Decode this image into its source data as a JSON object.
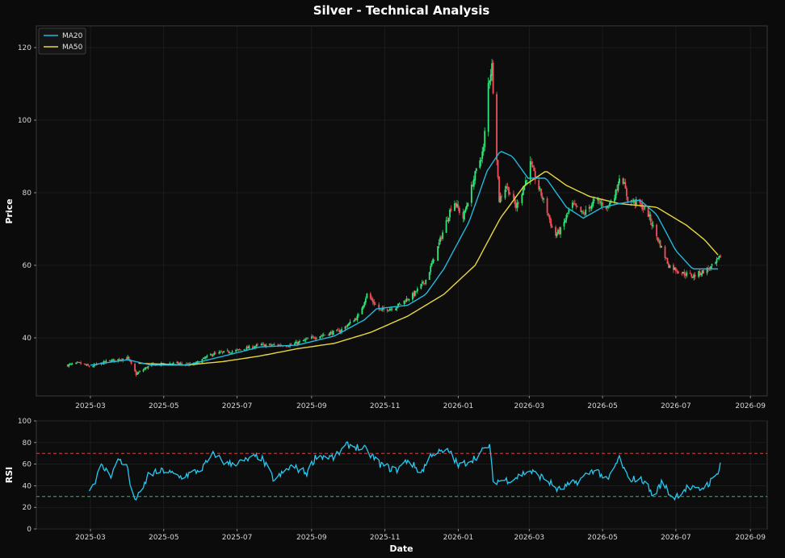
{
  "title": "Silver - Technical Analysis",
  "colors": {
    "background": "#0b0b0b",
    "up": "#2ee87a",
    "down": "#f0505a",
    "ma20": "#22b8e0",
    "ma50": "#e8d840",
    "rsi": "#28c8f0",
    "overbought_line": "#d84040",
    "oversold_line": "#20c070"
  },
  "chart_data": [
    {
      "type": "candlestick",
      "ylabel": "Price",
      "ylim": [
        24,
        126
      ],
      "yticks": [
        40,
        60,
        80,
        100,
        120
      ],
      "x_ticks": [
        "2025-03",
        "2025-05",
        "2025-07",
        "2025-09",
        "2025-11",
        "2026-01",
        "2026-03",
        "2026-05",
        "2026-07",
        "2026-09"
      ],
      "xlim": [
        "2025-01-15",
        "2026-09-15"
      ],
      "grid": true,
      "legend": {
        "position": "top-left",
        "entries": [
          "MA20",
          "MA50"
        ]
      },
      "price_anchors": [
        [
          "2025-02-10",
          32.5
        ],
        [
          "2025-02-20",
          33
        ],
        [
          "2025-03-01",
          32
        ],
        [
          "2025-03-15",
          33.5
        ],
        [
          "2025-04-01",
          34.5
        ],
        [
          "2025-04-08",
          30
        ],
        [
          "2025-04-20",
          32.5
        ],
        [
          "2025-05-10",
          33
        ],
        [
          "2025-05-25",
          32.5
        ],
        [
          "2025-06-10",
          35.5
        ],
        [
          "2025-07-01",
          36.5
        ],
        [
          "2025-07-20",
          38
        ],
        [
          "2025-08-15",
          38
        ],
        [
          "2025-09-01",
          40
        ],
        [
          "2025-09-25",
          42
        ],
        [
          "2025-10-10",
          46
        ],
        [
          "2025-10-17",
          52
        ],
        [
          "2025-10-28",
          47.5
        ],
        [
          "2025-11-10",
          48.5
        ],
        [
          "2025-11-25",
          52
        ],
        [
          "2025-12-05",
          56
        ],
        [
          "2025-12-12",
          62
        ],
        [
          "2025-12-20",
          70
        ],
        [
          "2025-12-28",
          78
        ],
        [
          "2026-01-05",
          73
        ],
        [
          "2026-01-15",
          85
        ],
        [
          "2026-01-22",
          92
        ],
        [
          "2026-01-26",
          110
        ],
        [
          "2026-01-29",
          115
        ],
        [
          "2026-02-01",
          96
        ],
        [
          "2026-02-04",
          78
        ],
        [
          "2026-02-10",
          82
        ],
        [
          "2026-02-18",
          76
        ],
        [
          "2026-02-25",
          82
        ],
        [
          "2026-03-02",
          88
        ],
        [
          "2026-03-08",
          82
        ],
        [
          "2026-03-15",
          76
        ],
        [
          "2026-03-22",
          68
        ],
        [
          "2026-03-28",
          70
        ],
        [
          "2026-04-05",
          77
        ],
        [
          "2026-04-15",
          74
        ],
        [
          "2026-04-25",
          78
        ],
        [
          "2026-05-05",
          76
        ],
        [
          "2026-05-12",
          80
        ],
        [
          "2026-05-16",
          86
        ],
        [
          "2026-05-22",
          78
        ],
        [
          "2026-06-01",
          77
        ],
        [
          "2026-06-08",
          74
        ],
        [
          "2026-06-15",
          68
        ],
        [
          "2026-06-25",
          60
        ],
        [
          "2026-07-05",
          58
        ],
        [
          "2026-07-15",
          57
        ],
        [
          "2026-07-25",
          58.5
        ],
        [
          "2026-08-02",
          60
        ],
        [
          "2026-08-08",
          63
        ]
      ],
      "ma20_anchors": [
        [
          "2025-03-01",
          32.5
        ],
        [
          "2025-04-01",
          34
        ],
        [
          "2025-04-20",
          32.5
        ],
        [
          "2025-05-20",
          32.5
        ],
        [
          "2025-06-20",
          35
        ],
        [
          "2025-07-20",
          37.5
        ],
        [
          "2025-08-20",
          38
        ],
        [
          "2025-09-20",
          40.5
        ],
        [
          "2025-10-15",
          45
        ],
        [
          "2025-10-25",
          48
        ],
        [
          "2025-11-20",
          49
        ],
        [
          "2025-12-05",
          52
        ],
        [
          "2025-12-20",
          59
        ],
        [
          "2026-01-10",
          72
        ],
        [
          "2026-01-25",
          86
        ],
        [
          "2026-02-05",
          91.5
        ],
        [
          "2026-02-15",
          90
        ],
        [
          "2026-02-28",
          84
        ],
        [
          "2026-03-15",
          84
        ],
        [
          "2026-04-01",
          76
        ],
        [
          "2026-04-15",
          73
        ],
        [
          "2026-05-01",
          76
        ],
        [
          "2026-05-15",
          77
        ],
        [
          "2026-06-01",
          78
        ],
        [
          "2026-06-15",
          74
        ],
        [
          "2026-07-01",
          64
        ],
        [
          "2026-07-15",
          59
        ],
        [
          "2026-08-06",
          59
        ]
      ],
      "ma50_anchors": [
        [
          "2025-04-10",
          33
        ],
        [
          "2025-05-20",
          32.5
        ],
        [
          "2025-06-20",
          33.5
        ],
        [
          "2025-07-20",
          35
        ],
        [
          "2025-08-20",
          37
        ],
        [
          "2025-09-20",
          38.5
        ],
        [
          "2025-10-20",
          41.5
        ],
        [
          "2025-11-20",
          46
        ],
        [
          "2025-12-20",
          52
        ],
        [
          "2026-01-15",
          60
        ],
        [
          "2026-02-05",
          73
        ],
        [
          "2026-02-25",
          82
        ],
        [
          "2026-03-15",
          86
        ],
        [
          "2026-04-01",
          82
        ],
        [
          "2026-04-20",
          79
        ],
        [
          "2026-05-15",
          77
        ],
        [
          "2026-06-15",
          76
        ],
        [
          "2026-07-10",
          71
        ],
        [
          "2026-07-25",
          67
        ],
        [
          "2026-08-06",
          62.5
        ]
      ]
    },
    {
      "type": "line",
      "xlabel": "Date",
      "ylabel": "RSI",
      "ylim": [
        0,
        100
      ],
      "yticks": [
        0,
        20,
        40,
        60,
        80,
        100
      ],
      "x_ticks": [
        "2025-03",
        "2025-05",
        "2025-07",
        "2025-09",
        "2025-11",
        "2026-01",
        "2026-03",
        "2026-05",
        "2026-07",
        "2026-09"
      ],
      "reference_lines": [
        70,
        30
      ],
      "rsi_anchors": [
        [
          "2025-02-28",
          35
        ],
        [
          "2025-03-05",
          45
        ],
        [
          "2025-03-10",
          58
        ],
        [
          "2025-03-18",
          50
        ],
        [
          "2025-03-25",
          65
        ],
        [
          "2025-04-01",
          56
        ],
        [
          "2025-04-05",
          27
        ],
        [
          "2025-04-12",
          32
        ],
        [
          "2025-04-18",
          50
        ],
        [
          "2025-05-01",
          54
        ],
        [
          "2025-05-15",
          48
        ],
        [
          "2025-06-01",
          55
        ],
        [
          "2025-06-12",
          70
        ],
        [
          "2025-06-22",
          60
        ],
        [
          "2025-07-05",
          62
        ],
        [
          "2025-07-20",
          68
        ],
        [
          "2025-08-01",
          45
        ],
        [
          "2025-08-15",
          58
        ],
        [
          "2025-08-28",
          52
        ],
        [
          "2025-09-05",
          68
        ],
        [
          "2025-09-20",
          66
        ],
        [
          "2025-10-01",
          78
        ],
        [
          "2025-10-15",
          74
        ],
        [
          "2025-10-28",
          60
        ],
        [
          "2025-11-10",
          54
        ],
        [
          "2025-11-20",
          64
        ],
        [
          "2025-12-01",
          52
        ],
        [
          "2025-12-10",
          70
        ],
        [
          "2025-12-25",
          72
        ],
        [
          "2026-01-01",
          58
        ],
        [
          "2026-01-15",
          66
        ],
        [
          "2026-01-27",
          78
        ],
        [
          "2026-01-30",
          44
        ],
        [
          "2026-02-15",
          46
        ],
        [
          "2026-03-01",
          54
        ],
        [
          "2026-03-15",
          46
        ],
        [
          "2026-03-25",
          36
        ],
        [
          "2026-04-10",
          44
        ],
        [
          "2026-04-25",
          56
        ],
        [
          "2026-05-05",
          44
        ],
        [
          "2026-05-15",
          66
        ],
        [
          "2026-05-22",
          47
        ],
        [
          "2026-06-05",
          45
        ],
        [
          "2026-06-12",
          30
        ],
        [
          "2026-06-20",
          44
        ],
        [
          "2026-06-28",
          28
        ],
        [
          "2026-07-10",
          38
        ],
        [
          "2026-07-20",
          36
        ],
        [
          "2026-07-28",
          42
        ],
        [
          "2026-08-03",
          48
        ],
        [
          "2026-08-07",
          60
        ]
      ]
    }
  ]
}
